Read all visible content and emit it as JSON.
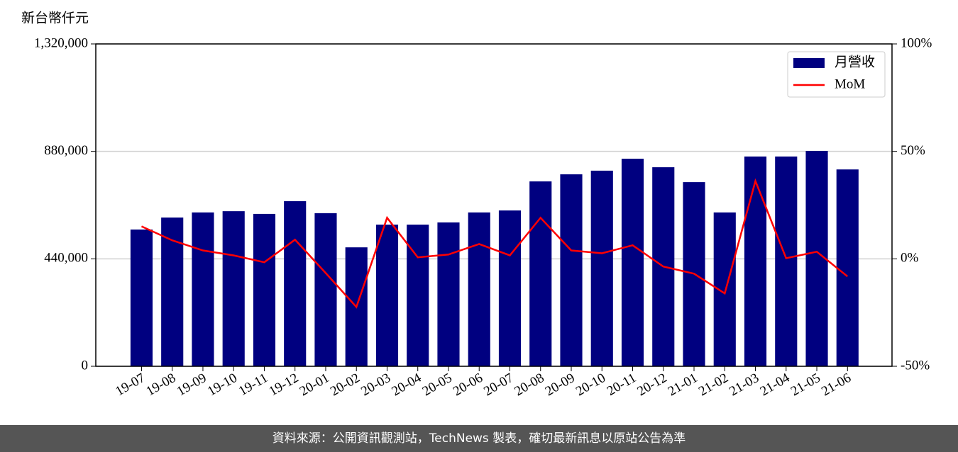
{
  "chart_data": {
    "type": "bar",
    "y_label": "新台幣仟元",
    "categories": [
      "19-07",
      "19-08",
      "19-09",
      "19-10",
      "19-11",
      "19-12",
      "20-01",
      "20-02",
      "20-03",
      "20-04",
      "20-05",
      "20-06",
      "20-07",
      "20-08",
      "20-09",
      "20-10",
      "20-11",
      "20-12",
      "21-01",
      "21-02",
      "21-03",
      "21-04",
      "21-05",
      "21-06"
    ],
    "series": [
      {
        "name": "月營收",
        "type": "bar",
        "color": "#000080",
        "values": [
          560000,
          609000,
          630000,
          635000,
          624000,
          676000,
          627000,
          487000,
          580000,
          580000,
          589000,
          630000,
          638000,
          757000,
          786000,
          801000,
          850000,
          815000,
          754000,
          630000,
          859000,
          859000,
          882000,
          806000
        ]
      },
      {
        "name": "MoM",
        "type": "line",
        "color": "#ff0000",
        "axis": "y2",
        "values": [
          15.1,
          8.6,
          3.9,
          1.6,
          -1.6,
          8.9,
          -6.6,
          -22.4,
          19.1,
          0.7,
          2.0,
          6.9,
          1.6,
          19.1,
          3.9,
          2.6,
          6.3,
          -3.6,
          -6.9,
          -16.1,
          36.2,
          0.3,
          3.3,
          -8.2
        ]
      }
    ],
    "ylim": [
      0,
      1320000
    ],
    "yticks": [
      0,
      {
        "value": 440000,
        "label": "440,000"
      },
      {
        "value": 880000,
        "label": "880,000"
      },
      {
        "value": 1320000,
        "label": "1,320,000"
      }
    ],
    "y2lim": [
      -50,
      100
    ],
    "y2ticks": [
      {
        "value": -50,
        "label": "-50%"
      },
      {
        "value": 0,
        "label": "0%"
      },
      {
        "value": 50,
        "label": "50%"
      },
      {
        "value": 100,
        "label": "100%"
      }
    ],
    "grid": true,
    "legend": "upper right"
  },
  "footer": "資料來源：公開資訊觀測站，TechNews 製表，確切最新訊息以原站公告為準"
}
